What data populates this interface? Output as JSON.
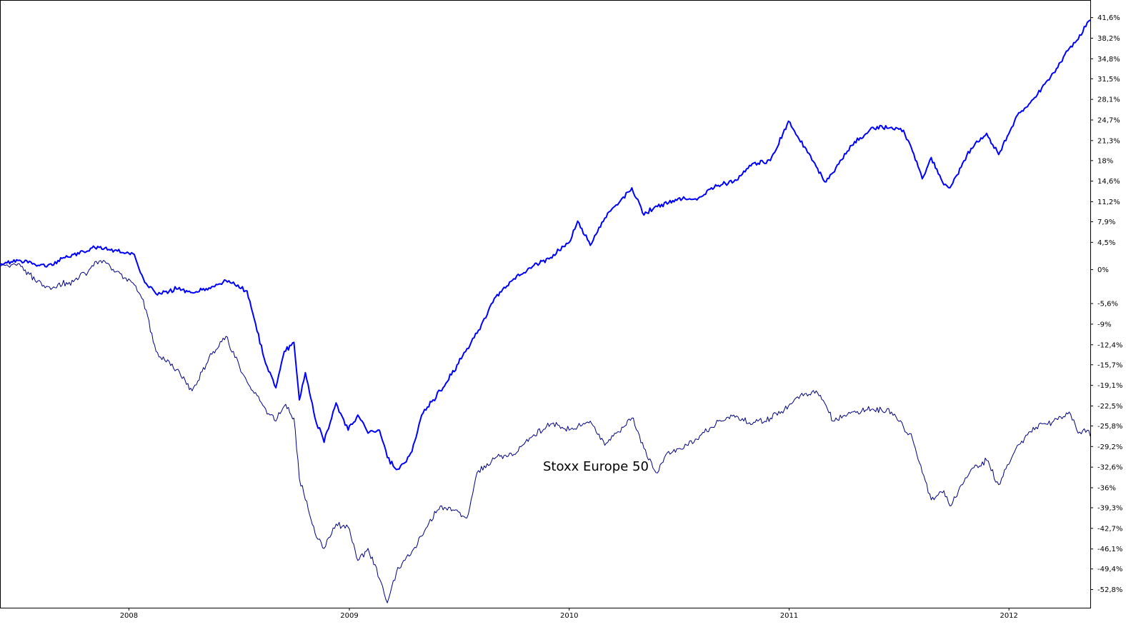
{
  "chart_data": {
    "type": "line",
    "title": "",
    "xlabel": "",
    "ylabel": "",
    "annotation": "Stoxx Europe 50",
    "x_range": [
      "2007-06-01",
      "2012-05-15"
    ],
    "ylim": [
      -55.8,
      44.5
    ],
    "grid": false,
    "legend": "none",
    "x_ticks": [
      {
        "date": "2008-01-01",
        "label": "2008"
      },
      {
        "date": "2009-01-01",
        "label": "2009"
      },
      {
        "date": "2010-01-01",
        "label": "2010"
      },
      {
        "date": "2011-01-01",
        "label": "2011"
      },
      {
        "date": "2012-01-01",
        "label": "2012"
      }
    ],
    "y_ticks": [
      {
        "value": 41.6,
        "label": "41,6%"
      },
      {
        "value": 38.2,
        "label": "38,2%"
      },
      {
        "value": 34.8,
        "label": "34,8%"
      },
      {
        "value": 31.5,
        "label": "31,5%"
      },
      {
        "value": 28.1,
        "label": "28,1%"
      },
      {
        "value": 24.7,
        "label": "24,7%"
      },
      {
        "value": 21.3,
        "label": "21,3%"
      },
      {
        "value": 18,
        "label": "18%"
      },
      {
        "value": 14.6,
        "label": "14,6%"
      },
      {
        "value": 11.2,
        "label": "11,2%"
      },
      {
        "value": 7.9,
        "label": "7,9%"
      },
      {
        "value": 4.5,
        "label": "4,5%"
      },
      {
        "value": 0,
        "label": "0%"
      },
      {
        "value": -5.6,
        "label": "-5,6%"
      },
      {
        "value": -9,
        "label": "-9%"
      },
      {
        "value": -12.4,
        "label": "-12,4%"
      },
      {
        "value": -15.7,
        "label": "-15,7%"
      },
      {
        "value": -19.1,
        "label": "-19,1%"
      },
      {
        "value": -22.5,
        "label": "-22,5%"
      },
      {
        "value": -25.8,
        "label": "-25,8%"
      },
      {
        "value": -29.2,
        "label": "-29,2%"
      },
      {
        "value": -32.6,
        "label": "-32,6%"
      },
      {
        "value": -36,
        "label": "-36%"
      },
      {
        "value": -39.3,
        "label": "-39,3%"
      },
      {
        "value": -42.7,
        "label": "-42,7%"
      },
      {
        "value": -46.1,
        "label": "-46,1%"
      },
      {
        "value": -49.4,
        "label": "-49,4%"
      },
      {
        "value": -52.8,
        "label": "-52,8%"
      }
    ],
    "series": [
      {
        "color": "#0000ff",
        "x": [
          "2007-06-01",
          "2007-07-01",
          "2007-08-15",
          "2007-10-01",
          "2007-11-15",
          "2007-12-01",
          "2007-12-20",
          "2008-01-10",
          "2008-01-25",
          "2008-02-15",
          "2008-03-20",
          "2008-04-15",
          "2008-05-20",
          "2008-06-10",
          "2008-06-25",
          "2008-07-15",
          "2008-08-15",
          "2008-09-01",
          "2008-09-15",
          "2008-10-01",
          "2008-10-10",
          "2008-10-20",
          "2008-11-05",
          "2008-11-20",
          "2008-12-10",
          "2008-12-30",
          "2009-01-15",
          "2009-02-01",
          "2009-02-20",
          "2009-03-05",
          "2009-03-20",
          "2009-04-01",
          "2009-04-15",
          "2009-05-01",
          "2009-06-01",
          "2009-07-01",
          "2009-08-01",
          "2009-09-01",
          "2009-10-01",
          "2009-11-01",
          "2009-12-01",
          "2010-01-01",
          "2010-01-15",
          "2010-02-05",
          "2010-03-01",
          "2010-04-15",
          "2010-05-05",
          "2010-05-25",
          "2010-06-15",
          "2010-07-10",
          "2010-08-01",
          "2010-08-25",
          "2010-10-01",
          "2010-11-01",
          "2010-12-01",
          "2010-12-31",
          "2011-01-15",
          "2011-02-15",
          "2011-03-01",
          "2011-03-15",
          "2011-04-15",
          "2011-05-20",
          "2011-06-20",
          "2011-07-10",
          "2011-07-25",
          "2011-08-10",
          "2011-08-25",
          "2011-09-15",
          "2011-09-25",
          "2011-10-30",
          "2011-11-25",
          "2011-12-15",
          "2012-01-15",
          "2012-02-15",
          "2012-03-15",
          "2012-04-10",
          "2012-04-25",
          "2012-05-10",
          "2012-05-15"
        ],
        "values": [
          0.8,
          1.5,
          0.5,
          2.5,
          3.8,
          3.2,
          2.8,
          2.5,
          -1.5,
          -4.0,
          -3.2,
          -3.8,
          -2.8,
          -1.8,
          -2.5,
          -3.5,
          -15.5,
          -19.5,
          -13.5,
          -12.0,
          -21.5,
          -17.0,
          -24.5,
          -28.5,
          -22.0,
          -26.5,
          -24.0,
          -27.0,
          -26.5,
          -31.0,
          -33.0,
          -32.0,
          -30.0,
          -24.0,
          -20.0,
          -15.5,
          -10.5,
          -4.5,
          -1.5,
          0.5,
          2.0,
          4.5,
          8.0,
          4.0,
          8.5,
          13.5,
          9.0,
          10.5,
          11.0,
          12.0,
          11.5,
          13.5,
          14.5,
          17.5,
          18.0,
          24.5,
          22.0,
          17.0,
          14.5,
          16.0,
          20.5,
          23.5,
          23.5,
          23.0,
          19.5,
          15.0,
          18.5,
          14.0,
          13.5,
          20.0,
          22.5,
          19.0,
          25.5,
          28.5,
          32.5,
          36.5,
          38.0,
          40.8,
          41.2
        ]
      },
      {
        "color": "#000080",
        "x": [
          "2007-06-01",
          "2007-07-01",
          "2007-08-15",
          "2007-10-01",
          "2007-11-15",
          "2007-12-01",
          "2008-01-10",
          "2008-01-25",
          "2008-02-15",
          "2008-03-20",
          "2008-04-15",
          "2008-05-20",
          "2008-06-10",
          "2008-06-25",
          "2008-07-15",
          "2008-08-15",
          "2008-09-01",
          "2008-09-15",
          "2008-10-01",
          "2008-10-10",
          "2008-10-20",
          "2008-11-05",
          "2008-11-20",
          "2008-12-10",
          "2008-12-30",
          "2009-01-15",
          "2009-02-01",
          "2009-02-20",
          "2009-03-05",
          "2009-03-20",
          "2009-04-01",
          "2009-04-15",
          "2009-05-01",
          "2009-06-01",
          "2009-07-01",
          "2009-07-15",
          "2009-08-01",
          "2009-09-01",
          "2009-10-01",
          "2009-11-01",
          "2009-12-01",
          "2010-01-01",
          "2010-02-05",
          "2010-03-01",
          "2010-04-15",
          "2010-05-05",
          "2010-05-25",
          "2010-06-15",
          "2010-07-10",
          "2010-08-01",
          "2010-08-25",
          "2010-10-01",
          "2010-11-01",
          "2010-12-01",
          "2010-12-31",
          "2011-01-15",
          "2011-02-15",
          "2011-03-01",
          "2011-03-15",
          "2011-04-15",
          "2011-05-20",
          "2011-06-20",
          "2011-07-10",
          "2011-07-25",
          "2011-08-10",
          "2011-08-25",
          "2011-09-15",
          "2011-09-25",
          "2011-10-30",
          "2011-11-25",
          "2011-12-15",
          "2012-01-15",
          "2012-02-15",
          "2012-03-15",
          "2012-04-10",
          "2012-04-25",
          "2012-05-10",
          "2012-05-15"
        ],
        "values": [
          0.5,
          1.0,
          -3.0,
          -2.0,
          1.5,
          0.5,
          -2.5,
          -5.0,
          -13.5,
          -16.5,
          -20.0,
          -13.5,
          -11.0,
          -14.5,
          -18.5,
          -23.0,
          -25.0,
          -22.5,
          -24.5,
          -34.5,
          -38.0,
          -43.5,
          -46.0,
          -42.0,
          -42.5,
          -48.0,
          -46.0,
          -51.0,
          -55.0,
          -50.0,
          -48.0,
          -46.5,
          -44.0,
          -39.0,
          -40.0,
          -41.0,
          -33.5,
          -31.0,
          -30.5,
          -27.5,
          -25.5,
          -26.5,
          -25.0,
          -29.0,
          -24.5,
          -29.5,
          -33.5,
          -30.0,
          -29.5,
          -28.0,
          -26.0,
          -24.0,
          -25.5,
          -24.5,
          -22.5,
          -21.0,
          -20.0,
          -22.0,
          -25.0,
          -23.5,
          -23.0,
          -23.5,
          -26.0,
          -28.0,
          -33.5,
          -38.0,
          -36.5,
          -39.0,
          -33.0,
          -31.5,
          -35.5,
          -29.0,
          -26.0,
          -25.0,
          -23.5,
          -27.0,
          -26.5,
          -27.5
        ]
      }
    ]
  }
}
